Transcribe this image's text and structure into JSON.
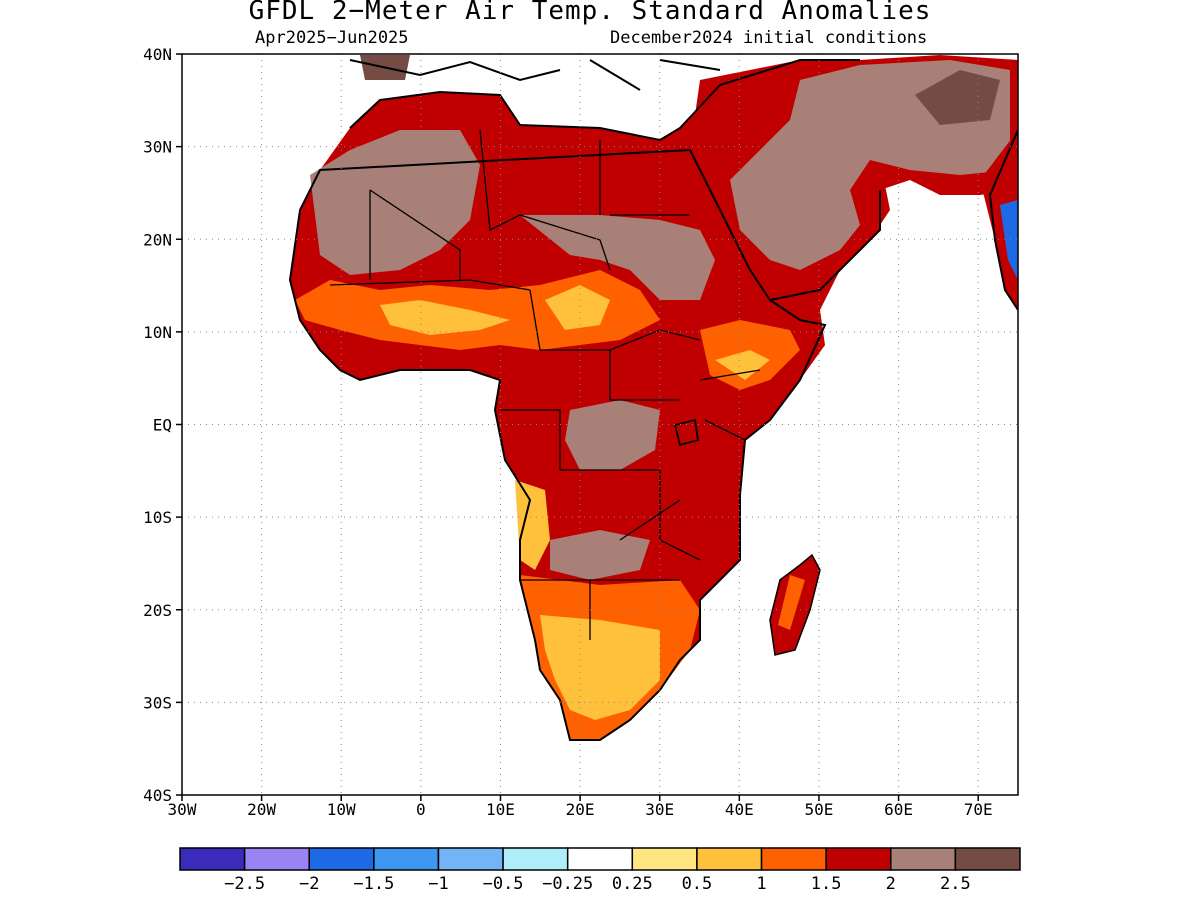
{
  "title": "GFDL 2−Meter Air Temp. Standard Anomalies",
  "period": "Apr2025−Jun2025",
  "init": "December2024 initial conditions",
  "map": {
    "lon_range": [
      -30,
      75
    ],
    "lat_range": [
      -40,
      40
    ],
    "lon_ticks": [
      "30W",
      "20W",
      "10W",
      "0",
      "10E",
      "20E",
      "30E",
      "40E",
      "50E",
      "60E",
      "70E"
    ],
    "lat_ticks": [
      "40N",
      "30N",
      "20N",
      "10N",
      "EQ",
      "10S",
      "20S",
      "30S",
      "40S"
    ],
    "grid": "dotted",
    "region": "Africa"
  },
  "colorbar": {
    "colors": [
      "#3a2bbb",
      "#9a84f4",
      "#1e6ae6",
      "#3d96f0",
      "#72b4f6",
      "#aeeef8",
      "#ffffff",
      "#ffe680",
      "#ffc03c",
      "#ff6000",
      "#c00000",
      "#a88078",
      "#744c44"
    ],
    "labels": [
      "−2.5",
      "−2",
      "−1.5",
      "−1",
      "−0.5",
      "−0.25",
      "0.25",
      "0.5",
      "1",
      "1.5",
      "2",
      "2.5"
    ]
  }
}
